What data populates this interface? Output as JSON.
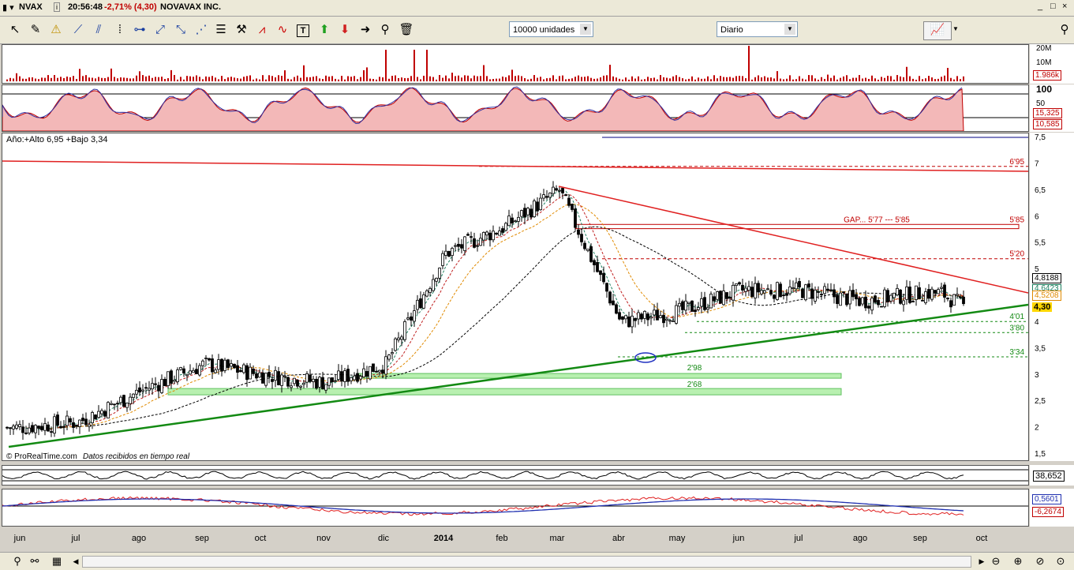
{
  "header": {
    "symbol": "NVAX",
    "time": "20:56:48",
    "change": "-2,71% (4,30)",
    "company": "NOVAVAX INC."
  },
  "toolbar": {
    "units_select": "10000 unidades",
    "period_select": "Diario"
  },
  "volume_panel": {
    "scale_labels": [
      "20M",
      "10M"
    ],
    "current_value": "1.986k"
  },
  "oscillator_panel": {
    "scale_labels": [
      "100",
      "50"
    ],
    "value_1": "15,325",
    "value_2": "10,585"
  },
  "main_panel": {
    "range_label": "Año:+Alto 6,95 +Bajo 3,34",
    "footer_brand": "© ProRealTime.com",
    "footer_status": "Datos recibidos en tiempo real",
    "price_labels": [
      "7,5",
      "7",
      "6,5",
      "6",
      "5,5",
      "5",
      "4,5",
      "4",
      "3,5",
      "3",
      "2,5",
      "2",
      "1,5"
    ],
    "value_boxes": [
      "4,8188",
      "4,6423",
      "4,5208",
      "4,30"
    ],
    "annotations": {
      "high": "6'95",
      "gap": "GAP... 5'77 --- 5'85",
      "gap_right": "5'85",
      "level_520": "5'20",
      "level_401": "4'01",
      "level_380": "3'80",
      "level_334": "3'34",
      "zone_298": "2'98",
      "zone_268": "2'68"
    }
  },
  "bottom_panel_1": {
    "value": "38,652"
  },
  "bottom_panel_2": {
    "value_1": "0,5601",
    "value_2": "-6,2674"
  },
  "time_axis": [
    "jun",
    "jul",
    "ago",
    "sep",
    "oct",
    "nov",
    "dic",
    "2014",
    "feb",
    "mar",
    "abr",
    "may",
    "jun",
    "jul",
    "ago",
    "sep",
    "oct"
  ],
  "colors": {
    "candle_up": "#ffffff",
    "candle_down": "#000000",
    "trend_up": "#138a13",
    "trend_down": "#e02020",
    "gap_label": "#c00000",
    "support_label": "#138a13"
  },
  "chart_data": {
    "type": "candlestick",
    "title": "NOVAVAX INC.",
    "ylim": [
      1.5,
      7.5
    ],
    "approx_close_by_month": {
      "x": [
        "jun",
        "jul",
        "ago",
        "sep",
        "oct",
        "nov",
        "dic",
        "2014",
        "feb",
        "mar",
        "abr",
        "may",
        "jun",
        "jul",
        "ago",
        "sep"
      ],
      "y": [
        2.0,
        2.1,
        2.7,
        3.2,
        3.0,
        2.85,
        3.2,
        5.3,
        5.8,
        6.5,
        4.0,
        4.2,
        4.6,
        4.6,
        4.4,
        4.55
      ]
    },
    "horizontal_levels": [
      6.95,
      5.85,
      5.77,
      5.2,
      4.01,
      3.8,
      3.34
    ],
    "zones": [
      2.98,
      2.68
    ],
    "year_high": 6.95,
    "year_low": 3.34,
    "last": 4.3
  }
}
